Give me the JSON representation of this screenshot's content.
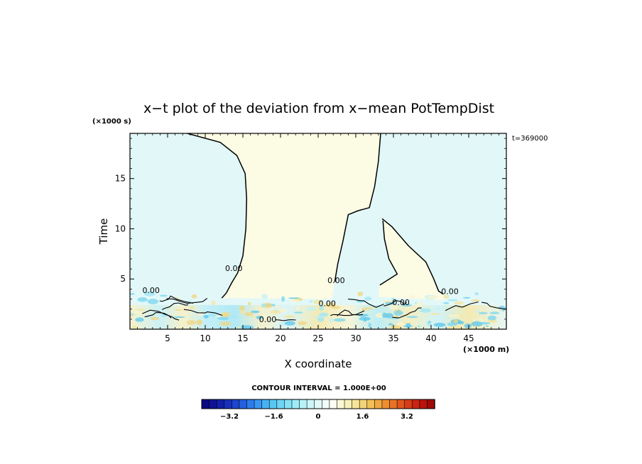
{
  "chart_data": {
    "type": "heatmap",
    "title": "x−t plot of the deviation from x−mean PotTempDist",
    "xlabel": "X coordinate",
    "ylabel": "Time",
    "x_unit": "(×1000 m)",
    "y_unit": "(×1000 s)",
    "time_label": "t=369000",
    "xlim": [
      0,
      50
    ],
    "ylim": [
      0,
      19.5
    ],
    "x_ticks": [
      5,
      10,
      15,
      20,
      25,
      30,
      35,
      40,
      45
    ],
    "x_tick_labels": [
      "5",
      "10",
      "15",
      "20",
      "25",
      "30",
      "35",
      "40",
      "45"
    ],
    "y_ticks": [
      5,
      10,
      15
    ],
    "y_tick_labels": [
      "5",
      "10",
      "15"
    ],
    "contour_interval_label": "CONTOUR INTERVAL = 1.000E+00",
    "contour_labels": [
      {
        "text": "0.00",
        "x": 13.8,
        "y": 5.8
      },
      {
        "text": "0.00",
        "x": 2.8,
        "y": 3.6
      },
      {
        "text": "0.00",
        "x": 27.4,
        "y": 4.6
      },
      {
        "text": "0.00",
        "x": 42.5,
        "y": 3.5
      },
      {
        "text": "0.00",
        "x": 36.0,
        "y": 2.4
      },
      {
        "text": "0.00",
        "x": 26.2,
        "y": 2.3
      },
      {
        "text": "0.00",
        "x": 18.3,
        "y": 0.7
      }
    ],
    "regions": [
      {
        "name": "negative",
        "value": -0.4,
        "color": "#e2f8f8"
      },
      {
        "name": "positive",
        "value": 0.2,
        "color": "#fcfbe4"
      }
    ],
    "zero_contours": [
      {
        "name": "left",
        "points": [
          [
            7.6,
            19.5
          ],
          [
            12,
            18.6
          ],
          [
            14.2,
            17.3
          ],
          [
            15.3,
            15.5
          ],
          [
            15.5,
            13
          ],
          [
            15.4,
            10
          ],
          [
            15,
            7.3
          ],
          [
            14.3,
            5.6
          ],
          [
            13.5,
            4.6
          ],
          [
            12.8,
            3.6
          ],
          [
            12.2,
            3.1
          ]
        ]
      },
      {
        "name": "mid",
        "points": [
          [
            33.3,
            19.5
          ],
          [
            33,
            16.7
          ],
          [
            32.5,
            14.2
          ],
          [
            31.8,
            12.1
          ],
          [
            30.3,
            11.8
          ],
          [
            29,
            11.4
          ],
          [
            28.3,
            8.8
          ],
          [
            27.6,
            6.5
          ],
          [
            27.2,
            4.7
          ]
        ]
      },
      {
        "name": "right",
        "points": [
          [
            33.5,
            11
          ],
          [
            34.8,
            10.2
          ],
          [
            37,
            8.3
          ],
          [
            39.3,
            6.7
          ],
          [
            40.3,
            5.1
          ],
          [
            41,
            3.8
          ],
          [
            41.6,
            3.5
          ]
        ]
      },
      {
        "name": "inner",
        "points": [
          [
            33.6,
            10.8
          ],
          [
            33.8,
            9
          ],
          [
            34.4,
            7
          ],
          [
            35.5,
            5.5
          ],
          [
            33.2,
            4.4
          ]
        ]
      }
    ],
    "colorbar": {
      "ticks": [
        -3.2,
        -1.6,
        0,
        1.6,
        3.2
      ],
      "tick_labels": [
        "−3.2",
        "−1.6",
        "0",
        "1.6",
        "3.2"
      ],
      "range": [
        -4.2,
        4.2
      ],
      "colors": [
        "#0a0a82",
        "#0d1394",
        "#1220a8",
        "#1730bc",
        "#1d45d0",
        "#2460e0",
        "#2c7cec",
        "#3898f2",
        "#46b2f4",
        "#58c6f4",
        "#6ed6f4",
        "#86e2f6",
        "#9eecf8",
        "#b6f2f8",
        "#ccf6f8",
        "#e0f9f9",
        "#f2fcfc",
        "#fdfdf4",
        "#fbf8d8",
        "#f8f0b6",
        "#f6e498",
        "#f4d478",
        "#f2c058",
        "#f0a840",
        "#ee8e30",
        "#e87226",
        "#e0561e",
        "#d63c18",
        "#cc2412",
        "#b8140c",
        "#a00a08"
      ]
    }
  }
}
